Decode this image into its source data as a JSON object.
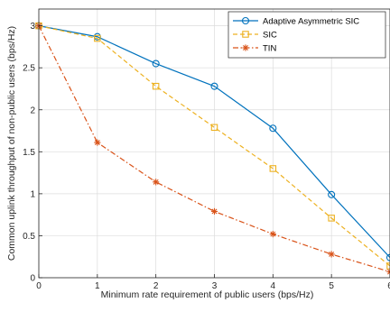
{
  "chart_data": {
    "type": "line",
    "title": "",
    "xlabel": "Minimum rate requirement of public users (bps/Hz)",
    "ylabel": "Common uplink throughput of non-public users (bps/Hz)",
    "xlim": [
      0,
      6
    ],
    "ylim": [
      0,
      3.2
    ],
    "xticks": [
      0,
      1,
      2,
      3,
      4,
      5,
      6
    ],
    "yticks": [
      0,
      0.5,
      1,
      1.5,
      2,
      2.5,
      3
    ],
    "xtick_labels": [
      "0",
      "1",
      "2",
      "3",
      "4",
      "5",
      "6"
    ],
    "ytick_labels": [
      "0",
      "0.5",
      "1",
      "1.5",
      "2",
      "2.5",
      "3"
    ],
    "grid": true,
    "legend_position": "top-right",
    "x": [
      0,
      1,
      2,
      3,
      4,
      5,
      6
    ],
    "series": [
      {
        "name": "Adaptive Asymmetric SIC",
        "values": [
          3.0,
          2.87,
          2.55,
          2.28,
          1.78,
          0.99,
          0.24
        ],
        "color": "#0072BD",
        "marker": "circle",
        "dash": "solid"
      },
      {
        "name": "SIC",
        "values": [
          3.0,
          2.85,
          2.28,
          1.79,
          1.3,
          0.71,
          0.14
        ],
        "color": "#EDB120",
        "marker": "square",
        "dash": "dashed"
      },
      {
        "name": "TIN",
        "values": [
          3.0,
          1.61,
          1.14,
          0.79,
          0.52,
          0.28,
          0.07
        ],
        "color": "#D95319",
        "marker": "star",
        "dash": "dashdot"
      }
    ]
  }
}
